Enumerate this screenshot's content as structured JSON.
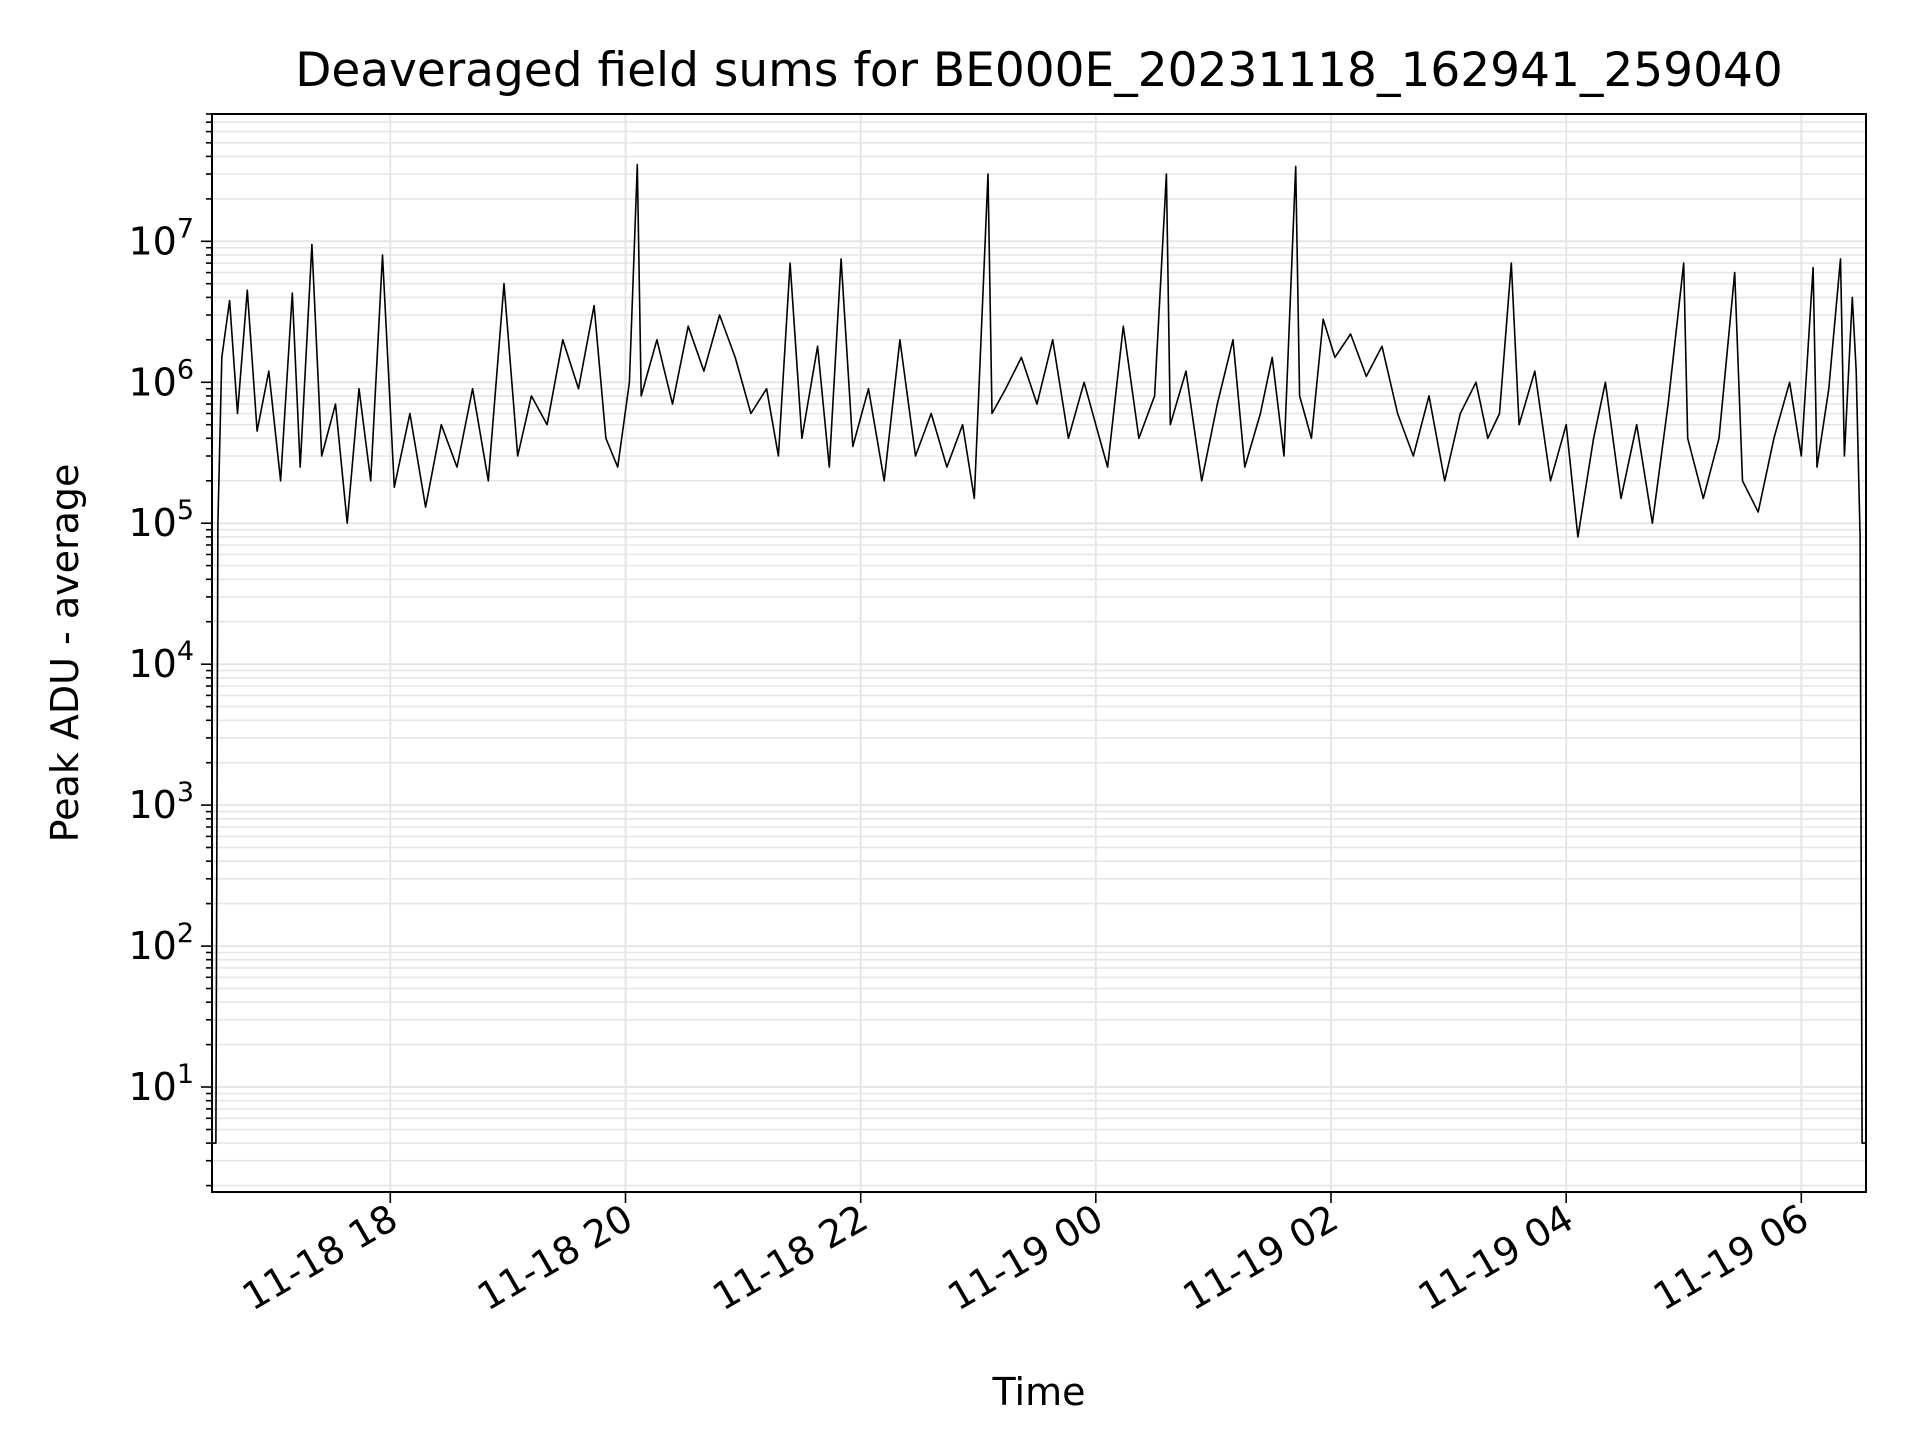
{
  "chart_data": {
    "type": "line",
    "title": "Deaveraged field sums for BE000E_20231118_162941_259040",
    "xlabel": "Time",
    "ylabel": "Peak ADU - average",
    "yscale": "log",
    "ylim": [
      1.8,
      80000000
    ],
    "xlim": [
      "2023-11-18 16:29",
      "2023-11-19 06:33"
    ],
    "grid": true,
    "grid_minor": true,
    "line_color": "#000000",
    "grid_color": "#e6e6e6",
    "x_ticks": [
      {
        "t": "2023-11-18 18:00",
        "label": "11-18 18"
      },
      {
        "t": "2023-11-18 20:00",
        "label": "11-18 20"
      },
      {
        "t": "2023-11-18 22:00",
        "label": "11-18 22"
      },
      {
        "t": "2023-11-19 00:00",
        "label": "11-19 00"
      },
      {
        "t": "2023-11-19 02:00",
        "label": "11-19 02"
      },
      {
        "t": "2023-11-19 04:00",
        "label": "11-19 04"
      },
      {
        "t": "2023-11-19 06:00",
        "label": "11-19 06"
      }
    ],
    "y_ticks": [
      {
        "value": 10,
        "base": "10",
        "exp": "1"
      },
      {
        "value": 100,
        "base": "10",
        "exp": "2"
      },
      {
        "value": 1000,
        "base": "10",
        "exp": "3"
      },
      {
        "value": 10000,
        "base": "10",
        "exp": "4"
      },
      {
        "value": 100000,
        "base": "10",
        "exp": "5"
      },
      {
        "value": 1000000,
        "base": "10",
        "exp": "6"
      },
      {
        "value": 10000000,
        "base": "10",
        "exp": "7"
      }
    ],
    "series": [
      {
        "points": [
          [
            "2023-11-18 16:29",
            4
          ],
          [
            "2023-11-18 16:31",
            4
          ],
          [
            "2023-11-18 16:32",
            100000
          ],
          [
            "2023-11-18 16:34",
            1500000
          ],
          [
            "2023-11-18 16:38",
            3800000
          ],
          [
            "2023-11-18 16:42",
            600000
          ],
          [
            "2023-11-18 16:47",
            4500000
          ],
          [
            "2023-11-18 16:52",
            450000
          ],
          [
            "2023-11-18 16:58",
            1200000
          ],
          [
            "2023-11-18 17:04",
            200000
          ],
          [
            "2023-11-18 17:10",
            4300000
          ],
          [
            "2023-11-18 17:14",
            250000
          ],
          [
            "2023-11-18 17:20",
            9500000
          ],
          [
            "2023-11-18 17:25",
            300000
          ],
          [
            "2023-11-18 17:32",
            700000
          ],
          [
            "2023-11-18 17:38",
            100000
          ],
          [
            "2023-11-18 17:44",
            900000
          ],
          [
            "2023-11-18 17:50",
            200000
          ],
          [
            "2023-11-18 17:56",
            8000000
          ],
          [
            "2023-11-18 18:02",
            180000
          ],
          [
            "2023-11-18 18:10",
            600000
          ],
          [
            "2023-11-18 18:18",
            130000
          ],
          [
            "2023-11-18 18:26",
            500000
          ],
          [
            "2023-11-18 18:34",
            250000
          ],
          [
            "2023-11-18 18:42",
            900000
          ],
          [
            "2023-11-18 18:50",
            200000
          ],
          [
            "2023-11-18 18:58",
            5000000
          ],
          [
            "2023-11-18 19:05",
            300000
          ],
          [
            "2023-11-18 19:12",
            800000
          ],
          [
            "2023-11-18 19:20",
            500000
          ],
          [
            "2023-11-18 19:28",
            2000000
          ],
          [
            "2023-11-18 19:36",
            900000
          ],
          [
            "2023-11-18 19:44",
            3500000
          ],
          [
            "2023-11-18 19:50",
            400000
          ],
          [
            "2023-11-18 19:56",
            250000
          ],
          [
            "2023-11-18 20:02",
            1000000
          ],
          [
            "2023-11-18 20:06",
            35000000
          ],
          [
            "2023-11-18 20:08",
            800000
          ],
          [
            "2023-11-18 20:16",
            2000000
          ],
          [
            "2023-11-18 20:24",
            700000
          ],
          [
            "2023-11-18 20:32",
            2500000
          ],
          [
            "2023-11-18 20:40",
            1200000
          ],
          [
            "2023-11-18 20:48",
            3000000
          ],
          [
            "2023-11-18 20:56",
            1500000
          ],
          [
            "2023-11-18 21:04",
            600000
          ],
          [
            "2023-11-18 21:12",
            900000
          ],
          [
            "2023-11-18 21:18",
            300000
          ],
          [
            "2023-11-18 21:24",
            7000000
          ],
          [
            "2023-11-18 21:30",
            400000
          ],
          [
            "2023-11-18 21:38",
            1800000
          ],
          [
            "2023-11-18 21:44",
            250000
          ],
          [
            "2023-11-18 21:50",
            7500000
          ],
          [
            "2023-11-18 21:56",
            350000
          ],
          [
            "2023-11-18 22:04",
            900000
          ],
          [
            "2023-11-18 22:12",
            200000
          ],
          [
            "2023-11-18 22:20",
            2000000
          ],
          [
            "2023-11-18 22:28",
            300000
          ],
          [
            "2023-11-18 22:36",
            600000
          ],
          [
            "2023-11-18 22:44",
            250000
          ],
          [
            "2023-11-18 22:52",
            500000
          ],
          [
            "2023-11-18 22:58",
            150000
          ],
          [
            "2023-11-18 23:05",
            30000000
          ],
          [
            "2023-11-18 23:07",
            600000
          ],
          [
            "2023-11-18 23:14",
            900000
          ],
          [
            "2023-11-18 23:22",
            1500000
          ],
          [
            "2023-11-18 23:30",
            700000
          ],
          [
            "2023-11-18 23:38",
            2000000
          ],
          [
            "2023-11-18 23:46",
            400000
          ],
          [
            "2023-11-18 23:54",
            1000000
          ],
          [
            "2023-11-19 00:00",
            500000
          ],
          [
            "2023-11-19 00:06",
            250000
          ],
          [
            "2023-11-19 00:14",
            2500000
          ],
          [
            "2023-11-19 00:22",
            400000
          ],
          [
            "2023-11-19 00:30",
            800000
          ],
          [
            "2023-11-19 00:36",
            30000000
          ],
          [
            "2023-11-19 00:38",
            500000
          ],
          [
            "2023-11-19 00:46",
            1200000
          ],
          [
            "2023-11-19 00:54",
            200000
          ],
          [
            "2023-11-19 01:02",
            700000
          ],
          [
            "2023-11-19 01:10",
            2000000
          ],
          [
            "2023-11-19 01:16",
            250000
          ],
          [
            "2023-11-19 01:24",
            600000
          ],
          [
            "2023-11-19 01:30",
            1500000
          ],
          [
            "2023-11-19 01:36",
            300000
          ],
          [
            "2023-11-19 01:42",
            34000000
          ],
          [
            "2023-11-19 01:44",
            800000
          ],
          [
            "2023-11-19 01:50",
            400000
          ],
          [
            "2023-11-19 01:56",
            2800000
          ],
          [
            "2023-11-19 02:02",
            1500000
          ],
          [
            "2023-11-19 02:10",
            2200000
          ],
          [
            "2023-11-19 02:18",
            1100000
          ],
          [
            "2023-11-19 02:26",
            1800000
          ],
          [
            "2023-11-19 02:34",
            600000
          ],
          [
            "2023-11-19 02:42",
            300000
          ],
          [
            "2023-11-19 02:50",
            800000
          ],
          [
            "2023-11-19 02:58",
            200000
          ],
          [
            "2023-11-19 03:06",
            600000
          ],
          [
            "2023-11-19 03:14",
            1000000
          ],
          [
            "2023-11-19 03:20",
            400000
          ],
          [
            "2023-11-19 03:26",
            600000
          ],
          [
            "2023-11-19 03:32",
            7000000
          ],
          [
            "2023-11-19 03:36",
            500000
          ],
          [
            "2023-11-19 03:44",
            1200000
          ],
          [
            "2023-11-19 03:52",
            200000
          ],
          [
            "2023-11-19 04:00",
            500000
          ],
          [
            "2023-11-19 04:06",
            80000
          ],
          [
            "2023-11-19 04:14",
            400000
          ],
          [
            "2023-11-19 04:20",
            1000000
          ],
          [
            "2023-11-19 04:28",
            150000
          ],
          [
            "2023-11-19 04:36",
            500000
          ],
          [
            "2023-11-19 04:44",
            100000
          ],
          [
            "2023-11-19 04:52",
            700000
          ],
          [
            "2023-11-19 05:00",
            7000000
          ],
          [
            "2023-11-19 05:02",
            400000
          ],
          [
            "2023-11-19 05:10",
            150000
          ],
          [
            "2023-11-19 05:18",
            400000
          ],
          [
            "2023-11-19 05:26",
            6000000
          ],
          [
            "2023-11-19 05:30",
            200000
          ],
          [
            "2023-11-19 05:38",
            120000
          ],
          [
            "2023-11-19 05:46",
            400000
          ],
          [
            "2023-11-19 05:54",
            1000000
          ],
          [
            "2023-11-19 06:00",
            300000
          ],
          [
            "2023-11-19 06:06",
            6500000
          ],
          [
            "2023-11-19 06:08",
            250000
          ],
          [
            "2023-11-19 06:14",
            900000
          ],
          [
            "2023-11-19 06:20",
            7500000
          ],
          [
            "2023-11-19 06:22",
            300000
          ],
          [
            "2023-11-19 06:26",
            4000000
          ],
          [
            "2023-11-19 06:28",
            1200000
          ],
          [
            "2023-11-19 06:30",
            80000
          ],
          [
            "2023-11-19 06:31",
            4
          ],
          [
            "2023-11-19 06:33",
            4
          ]
        ]
      }
    ]
  }
}
